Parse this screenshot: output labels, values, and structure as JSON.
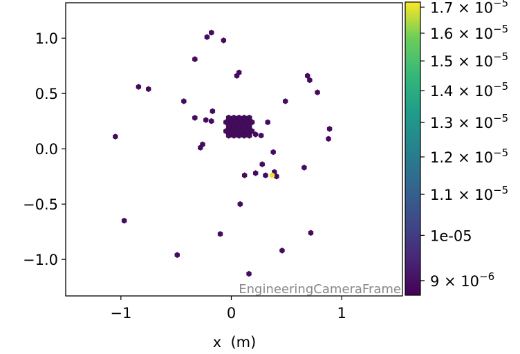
{
  "chart_data": {
    "type": "scatter",
    "marker": "hexbin",
    "title": "",
    "xlabel": "x  (m)",
    "ylabel": "",
    "xlim": [
      -1.5,
      1.55
    ],
    "ylim": [
      -1.33,
      1.32
    ],
    "grid": false,
    "x_ticks": [
      {
        "value": -1,
        "label": "−1"
      },
      {
        "value": 0,
        "label": "0"
      },
      {
        "value": 1,
        "label": "1"
      }
    ],
    "y_ticks": [
      {
        "value": 1.0,
        "label": "1.0"
      },
      {
        "value": 0.5,
        "label": "0.5"
      },
      {
        "value": 0.0,
        "label": "0.0"
      },
      {
        "value": -0.5,
        "label": "−0.5"
      },
      {
        "value": -1.0,
        "label": "−1.0"
      }
    ],
    "annotation": "EngineeringCameraFrame",
    "colorbar": {
      "colormap": "viridis",
      "scale": "log",
      "range": [
        8.7e-06,
        1.72e-05
      ],
      "ticks": [
        {
          "value": 1.7e-05,
          "mantissa": "1.7",
          "label": "1.7 × 10⁻⁵"
        },
        {
          "value": 1.6e-05,
          "mantissa": "1.6",
          "label": "1.6 × 10⁻⁵"
        },
        {
          "value": 1.5e-05,
          "mantissa": "1.5",
          "label": "1.5 × 10⁻⁵"
        },
        {
          "value": 1.4e-05,
          "mantissa": "1.4",
          "label": "1.4 × 10⁻⁵"
        },
        {
          "value": 1.3e-05,
          "mantissa": "1.3",
          "label": "1.3 × 10⁻⁵"
        },
        {
          "value": 1.2e-05,
          "mantissa": "1.2",
          "label": "1.2 × 10⁻⁵"
        },
        {
          "value": 1.1e-05,
          "mantissa": "1.1",
          "label": "1.1 × 10⁻⁵"
        },
        {
          "value": 1e-05,
          "label": "1e-05"
        },
        {
          "value": 9e-06,
          "mantissa": "9",
          "label": "9 × 10⁻⁶"
        }
      ]
    },
    "points": [
      {
        "x": -0.18,
        "y": 1.05,
        "v": 8.9e-06
      },
      {
        "x": -0.22,
        "y": 1.01,
        "v": 8.9e-06
      },
      {
        "x": -0.07,
        "y": 0.98,
        "v": 8.9e-06
      },
      {
        "x": -0.33,
        "y": 0.81,
        "v": 8.9e-06
      },
      {
        "x": 0.07,
        "y": 0.69,
        "v": 8.9e-06
      },
      {
        "x": 0.05,
        "y": 0.66,
        "v": 8.9e-06
      },
      {
        "x": 0.69,
        "y": 0.66,
        "v": 8.9e-06
      },
      {
        "x": 0.71,
        "y": 0.62,
        "v": 8.9e-06
      },
      {
        "x": -0.84,
        "y": 0.56,
        "v": 8.9e-06
      },
      {
        "x": -0.75,
        "y": 0.54,
        "v": 8.9e-06
      },
      {
        "x": 0.78,
        "y": 0.51,
        "v": 8.9e-06
      },
      {
        "x": -0.43,
        "y": 0.43,
        "v": 8.9e-06
      },
      {
        "x": 0.49,
        "y": 0.43,
        "v": 8.9e-06
      },
      {
        "x": -0.17,
        "y": 0.34,
        "v": 8.9e-06
      },
      {
        "x": -0.33,
        "y": 0.28,
        "v": 8.9e-06
      },
      {
        "x": -0.23,
        "y": 0.26,
        "v": 8.9e-06
      },
      {
        "x": -0.18,
        "y": 0.25,
        "v": 8.9e-06
      },
      {
        "x": 0.33,
        "y": 0.24,
        "v": 8.9e-06
      },
      {
        "x": 0.89,
        "y": 0.18,
        "v": 8.9e-06
      },
      {
        "x": -1.05,
        "y": 0.11,
        "v": 8.9e-06
      },
      {
        "x": 0.88,
        "y": 0.09,
        "v": 8.9e-06
      },
      {
        "x": 0.22,
        "y": 0.13,
        "v": 8.9e-06
      },
      {
        "x": 0.27,
        "y": 0.12,
        "v": 8.9e-06
      },
      {
        "x": -0.26,
        "y": 0.04,
        "v": 8.9e-06
      },
      {
        "x": -0.28,
        "y": 0.01,
        "v": 8.9e-06
      },
      {
        "x": 0.38,
        "y": -0.03,
        "v": 8.9e-06
      },
      {
        "x": 0.66,
        "y": -0.17,
        "v": 8.9e-06
      },
      {
        "x": 0.28,
        "y": -0.14,
        "v": 8.9e-06
      },
      {
        "x": 0.22,
        "y": -0.22,
        "v": 8.9e-06
      },
      {
        "x": 0.12,
        "y": -0.24,
        "v": 8.9e-06
      },
      {
        "x": 0.31,
        "y": -0.24,
        "v": 8.9e-06
      },
      {
        "x": 0.39,
        "y": -0.21,
        "v": 8.9e-06
      },
      {
        "x": 0.41,
        "y": -0.25,
        "v": 8.9e-06
      },
      {
        "x": 0.37,
        "y": -0.24,
        "v": 1.7e-05
      },
      {
        "x": 0.08,
        "y": -0.5,
        "v": 8.9e-06
      },
      {
        "x": -0.97,
        "y": -0.65,
        "v": 8.9e-06
      },
      {
        "x": -0.1,
        "y": -0.77,
        "v": 8.9e-06
      },
      {
        "x": 0.72,
        "y": -0.76,
        "v": 8.9e-06
      },
      {
        "x": 0.46,
        "y": -0.92,
        "v": 8.9e-06
      },
      {
        "x": -0.49,
        "y": -0.96,
        "v": 8.9e-06
      },
      {
        "x": 0.16,
        "y": -1.13,
        "v": 8.9e-06
      }
    ],
    "cluster": {
      "center_x": 0.07,
      "center_y": 0.2,
      "approx_points": 60,
      "v": 8.9e-06
    }
  }
}
